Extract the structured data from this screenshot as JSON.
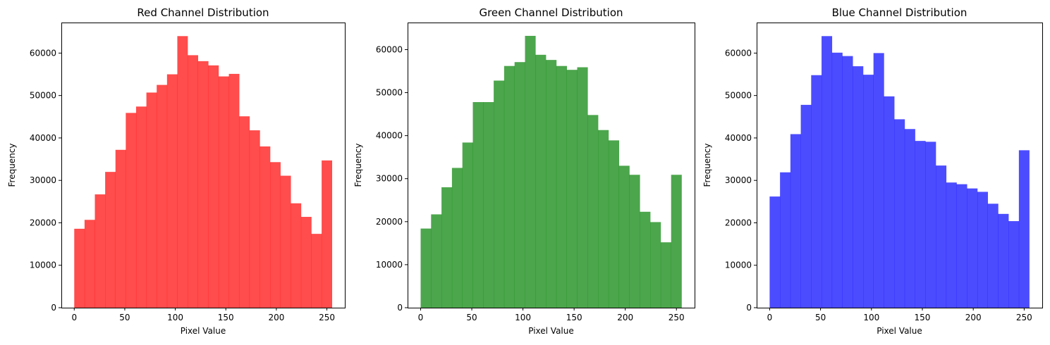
{
  "chart_data": [
    {
      "type": "bar",
      "title": "Red Channel Distribution",
      "xlabel": "Pixel Value",
      "ylabel": "Frequency",
      "color": "#ff0000",
      "opacity": 0.7,
      "xlim": [
        -12.75,
        267.75
      ],
      "ylim": [
        0,
        67200
      ],
      "xticks": [
        0,
        50,
        100,
        150,
        200,
        250
      ],
      "yticks": [
        0,
        10000,
        20000,
        30000,
        40000,
        50000,
        60000
      ],
      "bin_edges": [
        0,
        10.2,
        20.4,
        30.6,
        40.8,
        51,
        61.2,
        71.4,
        81.6,
        91.8,
        102,
        112.2,
        122.4,
        132.6,
        142.8,
        153,
        163.2,
        173.4,
        183.6,
        193.8,
        204,
        214.2,
        224.4,
        234.6,
        244.8,
        255
      ],
      "values": [
        18600,
        20700,
        26700,
        32000,
        37200,
        45900,
        47400,
        50700,
        52500,
        55000,
        64000,
        59500,
        58100,
        57100,
        54500,
        55100,
        45100,
        41800,
        38000,
        34300,
        31100,
        24600,
        21400,
        17400,
        34700
      ]
    },
    {
      "type": "bar",
      "title": "Green Channel Distribution",
      "xlabel": "Pixel Value",
      "ylabel": "Frequency",
      "color": "#008000",
      "opacity": 0.7,
      "xlim": [
        -12.75,
        267.75
      ],
      "ylim": [
        0,
        66300
      ],
      "xticks": [
        0,
        50,
        100,
        150,
        200,
        250
      ],
      "yticks": [
        0,
        10000,
        20000,
        30000,
        40000,
        50000,
        60000
      ],
      "bin_edges": [
        0,
        10.2,
        20.4,
        30.6,
        40.8,
        51,
        61.2,
        71.4,
        81.6,
        91.8,
        102,
        112.2,
        122.4,
        132.6,
        142.8,
        153,
        163.2,
        173.4,
        183.6,
        193.8,
        204,
        214.2,
        224.4,
        234.6,
        244.8,
        255
      ],
      "values": [
        18400,
        21700,
        28000,
        32500,
        38400,
        47800,
        47800,
        52800,
        56200,
        57100,
        63200,
        58800,
        57600,
        56200,
        55300,
        55900,
        44800,
        41300,
        38900,
        33000,
        30900,
        22300,
        19900,
        15200,
        30900
      ]
    },
    {
      "type": "bar",
      "title": "Blue Channel Distribution",
      "xlabel": "Pixel Value",
      "ylabel": "Frequency",
      "color": "#0000ff",
      "opacity": 0.7,
      "xlim": [
        -12.75,
        267.75
      ],
      "ylim": [
        0,
        67200
      ],
      "xticks": [
        0,
        50,
        100,
        150,
        200,
        250
      ],
      "yticks": [
        0,
        10000,
        20000,
        30000,
        40000,
        50000,
        60000
      ],
      "bin_edges": [
        0,
        10.2,
        20.4,
        30.6,
        40.8,
        51,
        61.2,
        71.4,
        81.6,
        91.8,
        102,
        112.2,
        122.4,
        132.6,
        142.8,
        153,
        163.2,
        173.4,
        183.6,
        193.8,
        204,
        214.2,
        224.4,
        234.6,
        244.8,
        255
      ],
      "values": [
        26200,
        31900,
        40900,
        47800,
        54800,
        64000,
        60100,
        59300,
        56900,
        54900,
        60000,
        49800,
        44400,
        42100,
        39300,
        39100,
        33500,
        29500,
        29100,
        28100,
        27300,
        24500,
        22100,
        20400,
        37100
      ]
    }
  ]
}
